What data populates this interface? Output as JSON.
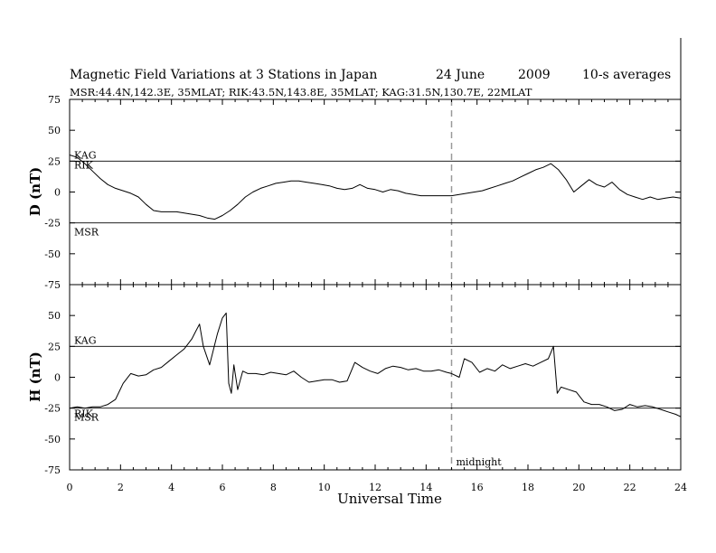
{
  "header": {
    "title": "Magnetic Field Variations at 3 Stations in Japan",
    "date": "24 June",
    "year": "2009",
    "averaging": "10-s averages",
    "stations": "MSR:44.4N,142.3E, 35MLAT;  RIK:43.5N,143.8E, 35MLAT;  KAG:31.5N,130.7E, 22MLAT"
  },
  "chart_data": [
    {
      "type": "line",
      "ylabel": "D (nT)",
      "xlabel": "Universal Time",
      "xlim": [
        0,
        24
      ],
      "ylim": [
        -75,
        75
      ],
      "x_ticks": [
        "0",
        "2",
        "4",
        "6",
        "8",
        "10",
        "12",
        "14",
        "16",
        "18",
        "20",
        "22",
        "24"
      ],
      "y_ticks": [
        "75",
        "50",
        "25",
        "0",
        "-25",
        "-50",
        "-75"
      ],
      "baselines": [
        {
          "name": "KAG",
          "value": 25
        },
        {
          "name": "RIK",
          "value": 25
        },
        {
          "name": "MSR",
          "value": -25
        }
      ],
      "series": [
        {
          "x": [
            0,
            0.3,
            0.6,
            0.9,
            1.2,
            1.5,
            1.8,
            2.1,
            2.4,
            2.7,
            3.0,
            3.3,
            3.6,
            3.9,
            4.2,
            4.5,
            4.8,
            5.1,
            5.4,
            5.7,
            6.0,
            6.3,
            6.6,
            6.9,
            7.2,
            7.5,
            7.8,
            8.1,
            8.4,
            8.7,
            9.0,
            9.3,
            9.6,
            9.9,
            10.2,
            10.5,
            10.8,
            11.1,
            11.4,
            11.7,
            12.0,
            12.3,
            12.6,
            12.9,
            13.2,
            13.5,
            13.8,
            14.1,
            14.4,
            14.7,
            15.0,
            15.3,
            15.6,
            15.9,
            16.2,
            16.5,
            16.8,
            17.1,
            17.4,
            17.7,
            18.0,
            18.3,
            18.6,
            18.9,
            19.2,
            19.5,
            19.8,
            20.1,
            20.4,
            20.7,
            21.0,
            21.3,
            21.6,
            21.9,
            22.2,
            22.5,
            22.8,
            23.1,
            23.4,
            23.7,
            24.0
          ],
          "y": [
            30,
            28,
            23,
            17,
            11,
            6,
            3,
            1,
            -1,
            -4,
            -10,
            -15,
            -16,
            -16,
            -16,
            -17,
            -18,
            -19,
            -21,
            -22,
            -19,
            -15,
            -10,
            -4,
            0,
            3,
            5,
            7,
            8,
            9,
            9,
            8,
            7,
            6,
            5,
            3,
            2,
            3,
            6,
            3,
            2,
            0,
            2,
            1,
            -1,
            -2,
            -3,
            -3,
            -3,
            -3,
            -3,
            -2,
            -1,
            0,
            1,
            3,
            5,
            7,
            9,
            12,
            15,
            18,
            20,
            23,
            18,
            10,
            0,
            5,
            10,
            6,
            4,
            8,
            2,
            -2,
            -4,
            -6,
            -4,
            -6,
            -5,
            -4,
            -5
          ]
        }
      ]
    },
    {
      "type": "line",
      "ylabel": "H (nT)",
      "xlabel": "Universal Time",
      "xlim": [
        0,
        24
      ],
      "ylim": [
        -75,
        75
      ],
      "x_ticks": [
        "0",
        "2",
        "4",
        "6",
        "8",
        "10",
        "12",
        "14",
        "16",
        "18",
        "20",
        "22",
        "24"
      ],
      "y_ticks": [
        "50",
        "25",
        "0",
        "-25",
        "-50",
        "-75"
      ],
      "baselines": [
        {
          "name": "KAG",
          "value": 25
        },
        {
          "name": "RIK",
          "value": -25
        },
        {
          "name": "MSR",
          "value": -25
        }
      ],
      "annotation": {
        "text": "midnight",
        "x": 15
      },
      "series": [
        {
          "x": [
            0,
            0.3,
            0.6,
            0.9,
            1.2,
            1.5,
            1.8,
            2.1,
            2.4,
            2.7,
            3.0,
            3.3,
            3.6,
            3.9,
            4.2,
            4.5,
            4.8,
            4.95,
            5.1,
            5.25,
            5.5,
            5.8,
            6.0,
            6.15,
            6.25,
            6.35,
            6.45,
            6.6,
            6.8,
            7.0,
            7.3,
            7.6,
            7.9,
            8.2,
            8.5,
            8.8,
            9.1,
            9.4,
            9.7,
            10.0,
            10.3,
            10.6,
            10.9,
            11.2,
            11.5,
            11.8,
            12.1,
            12.4,
            12.7,
            13.0,
            13.3,
            13.6,
            13.9,
            14.2,
            14.5,
            14.8,
            15.0,
            15.3,
            15.5,
            15.8,
            16.1,
            16.4,
            16.7,
            17.0,
            17.3,
            17.6,
            17.9,
            18.2,
            18.5,
            18.8,
            19.0,
            19.15,
            19.3,
            19.6,
            19.9,
            20.2,
            20.5,
            20.8,
            21.1,
            21.4,
            21.7,
            22.0,
            22.3,
            22.6,
            22.9,
            23.2,
            23.5,
            23.8,
            24.0
          ],
          "y": [
            -25,
            -24,
            -25,
            -24,
            -24,
            -22,
            -18,
            -5,
            3,
            1,
            2,
            6,
            8,
            13,
            18,
            23,
            31,
            37,
            43,
            25,
            10,
            35,
            48,
            52,
            -5,
            -13,
            10,
            -10,
            5,
            3,
            3,
            2,
            4,
            3,
            2,
            5,
            0,
            -4,
            -3,
            -2,
            -2,
            -4,
            -3,
            12,
            8,
            5,
            3,
            7,
            9,
            8,
            6,
            7,
            5,
            5,
            6,
            4,
            3,
            0,
            15,
            12,
            4,
            7,
            5,
            10,
            7,
            9,
            11,
            9,
            12,
            15,
            25,
            -13,
            -8,
            -10,
            -12,
            -20,
            -22,
            -22,
            -24,
            -27,
            -26,
            -22,
            -24,
            -23,
            -24,
            -26,
            -28,
            -30,
            -32
          ]
        }
      ]
    }
  ]
}
